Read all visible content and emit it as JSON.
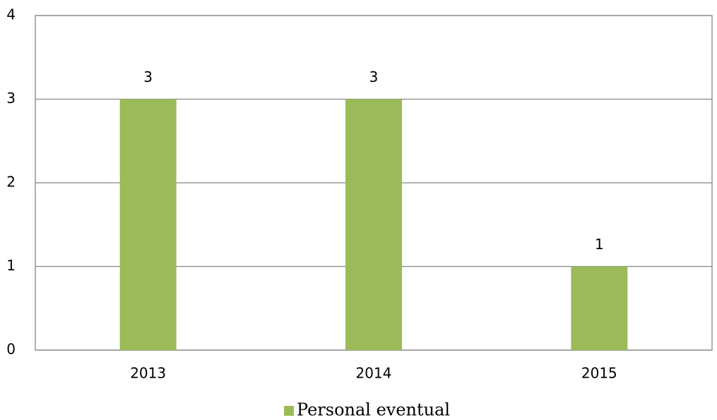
{
  "chart_data": {
    "type": "bar",
    "categories": [
      "2013",
      "2014",
      "2015"
    ],
    "series": [
      {
        "name": "Personal eventual",
        "color": "#9bbb59",
        "values": [
          3,
          3,
          1
        ]
      }
    ],
    "ylim": [
      0,
      4
    ],
    "yticks": [
      0,
      1,
      2,
      3,
      4
    ],
    "grid": true,
    "legend": "bottom"
  }
}
